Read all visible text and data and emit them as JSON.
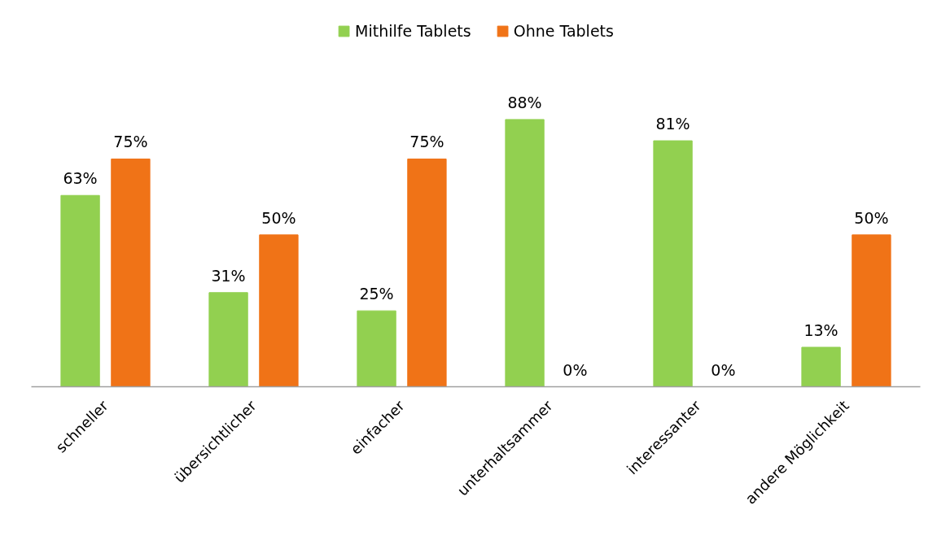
{
  "chart_data": {
    "type": "bar",
    "categories": [
      "schneller",
      "übersichtlicher",
      "einfacher",
      "unterhaltsammer",
      "interessanter",
      "andere Möglichkeit"
    ],
    "series": [
      {
        "name": "Mithilfe Tablets",
        "color": "#92d050",
        "values": [
          63,
          31,
          25,
          88,
          81,
          13
        ],
        "value_labels": [
          "63%",
          "31%",
          "25%",
          "88%",
          "81%",
          "13%"
        ]
      },
      {
        "name": "Ohne Tablets",
        "color": "#f07317",
        "values": [
          75,
          50,
          75,
          0,
          0,
          50
        ],
        "value_labels": [
          "75%",
          "50%",
          "75%",
          "0%",
          "0%",
          "50%"
        ]
      }
    ],
    "legend": "top"
  }
}
